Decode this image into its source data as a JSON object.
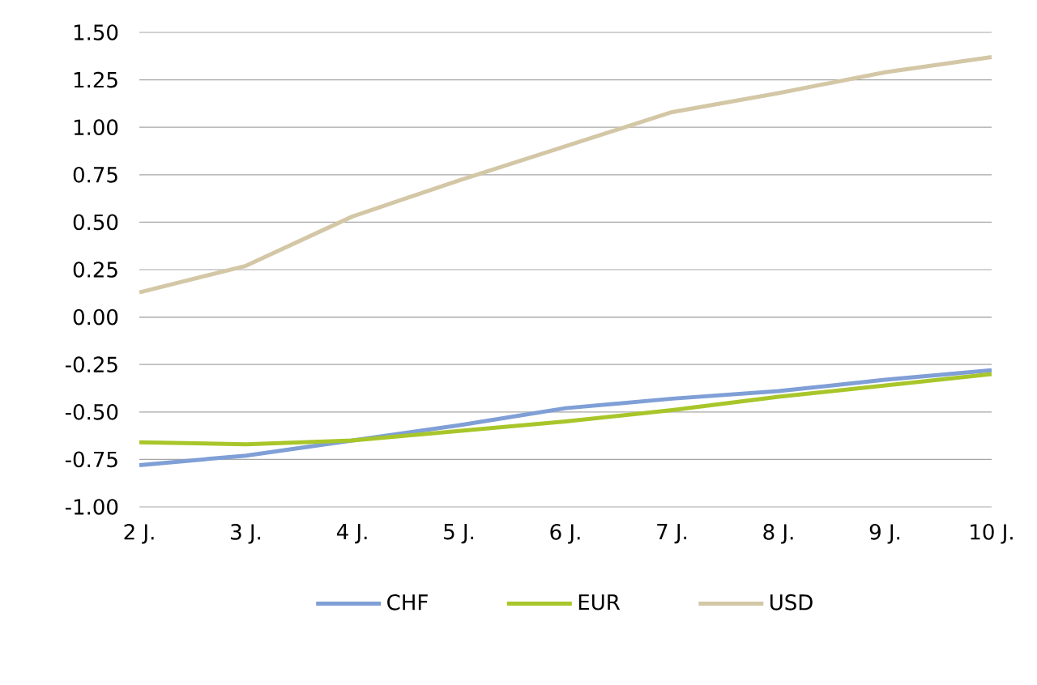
{
  "chart_data": {
    "type": "line",
    "categories": [
      "2 J.",
      "3 J.",
      "4 J.",
      "5 J.",
      "6 J.",
      "7 J.",
      "8 J.",
      "9 J.",
      "10 J."
    ],
    "series": [
      {
        "name": "CHF",
        "color": "#7f9fd6",
        "values": [
          -0.78,
          -0.73,
          -0.65,
          -0.57,
          -0.48,
          -0.43,
          -0.39,
          -0.33,
          -0.28
        ]
      },
      {
        "name": "EUR",
        "color": "#a8c62a",
        "values": [
          -0.66,
          -0.67,
          -0.65,
          -0.6,
          -0.55,
          -0.49,
          -0.42,
          -0.36,
          -0.3
        ]
      },
      {
        "name": "USD",
        "color": "#d3c7a6",
        "values": [
          0.13,
          0.27,
          0.53,
          0.72,
          0.9,
          1.08,
          1.18,
          1.29,
          1.37
        ]
      }
    ],
    "ylim": [
      -1.0,
      1.5
    ],
    "yticks": [
      {
        "value": -1.0,
        "label": "-1.00"
      },
      {
        "value": -0.75,
        "label": "-0.75"
      },
      {
        "value": -0.5,
        "label": "-0.50"
      },
      {
        "value": -0.25,
        "label": "-0.25"
      },
      {
        "value": 0,
        "label": "0.00"
      },
      {
        "value": 0.25,
        "label": "0.25"
      },
      {
        "value": 0.5,
        "label": "0.50"
      },
      {
        "value": 0.75,
        "label": "0.75"
      },
      {
        "value": 1.0,
        "label": "1.00"
      },
      {
        "value": 1.25,
        "label": "1.25"
      },
      {
        "value": 1.5,
        "label": "1.50"
      }
    ],
    "grid": "y",
    "legend": "bottom"
  }
}
